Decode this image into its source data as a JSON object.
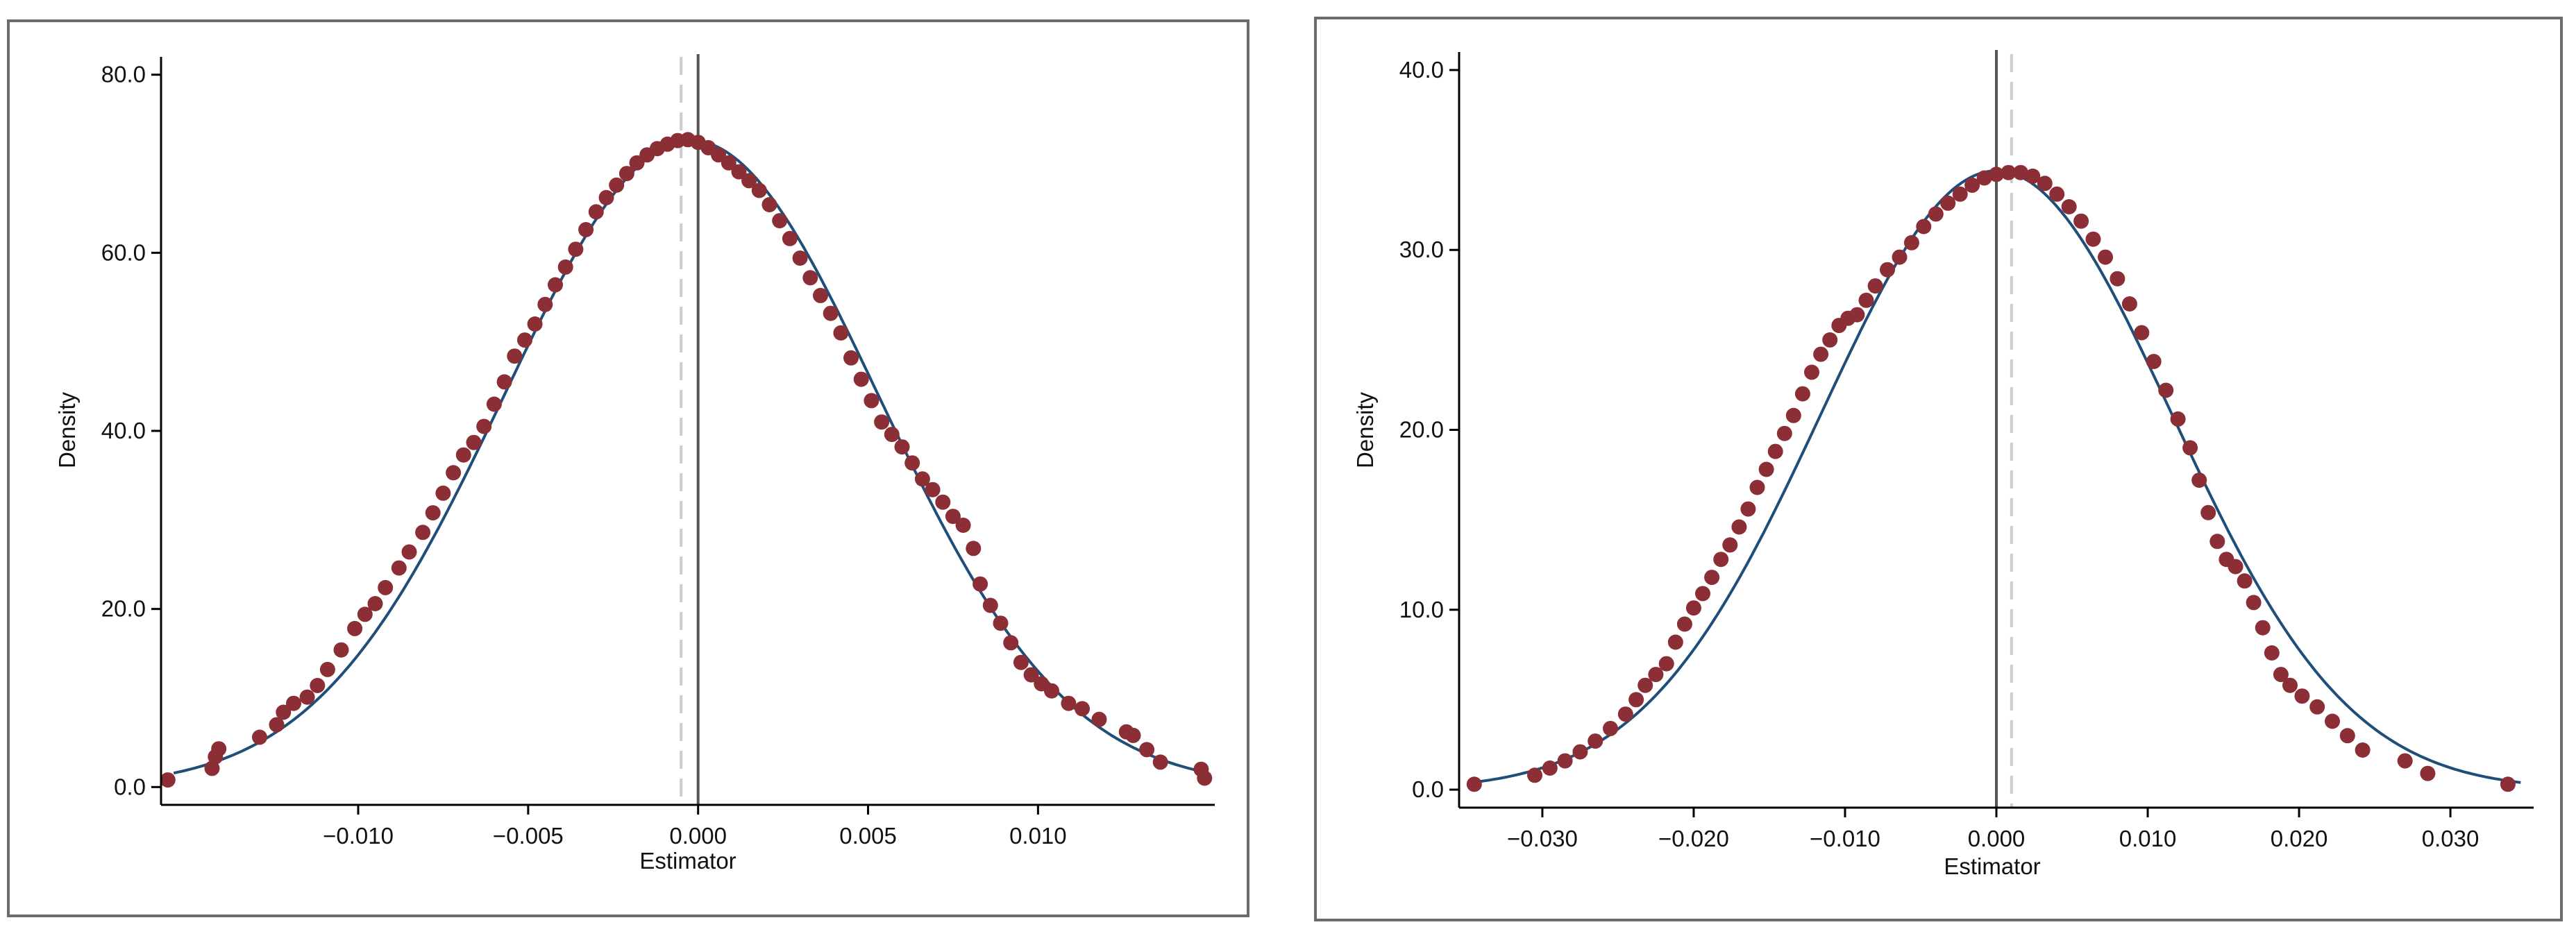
{
  "colors": {
    "frame": "#6b6b6b",
    "axis": "#000000",
    "marker": "#8b2e35",
    "curve": "#1e4e79",
    "solid_ref_line": "#555555",
    "dashed_ref_line": "#cccccc"
  },
  "chart_data": [
    {
      "type": "scatter",
      "title": "",
      "xlabel": "Estimator",
      "ylabel": "Density",
      "xlim": [
        -0.0158,
        0.0152
      ],
      "ylim": [
        -2.0,
        82.0
      ],
      "xticks": [
        -0.01,
        -0.005,
        0.0,
        0.005,
        0.01
      ],
      "xtick_labels": [
        "−0.010",
        "−0.005",
        "0.000",
        "0.005",
        "0.010"
      ],
      "yticks": [
        0,
        20,
        40,
        60,
        80
      ],
      "ytick_labels": [
        "0.0",
        "20.0",
        "40.0",
        "60.0",
        "80.0"
      ],
      "grid": false,
      "legend": "none",
      "ref_line_solid_x": 0.0,
      "ref_line_dashed_x": -0.0005,
      "normal_curve": {
        "mean": -0.0002,
        "sd": 0.0055,
        "peak": 72.6
      },
      "points": [
        [
          -0.0156,
          0.8
        ],
        [
          -0.0143,
          2.1
        ],
        [
          -0.0142,
          3.4
        ],
        [
          -0.0141,
          4.3
        ],
        [
          -0.0129,
          5.6
        ],
        [
          -0.0124,
          7.0
        ],
        [
          -0.0122,
          8.4
        ],
        [
          -0.0119,
          9.4
        ],
        [
          -0.0115,
          10.1
        ],
        [
          -0.0112,
          11.4
        ],
        [
          -0.0109,
          13.2
        ],
        [
          -0.0105,
          15.4
        ],
        [
          -0.0101,
          17.8
        ],
        [
          -0.0098,
          19.4
        ],
        [
          -0.0095,
          20.6
        ],
        [
          -0.0092,
          22.4
        ],
        [
          -0.0088,
          24.6
        ],
        [
          -0.0085,
          26.4
        ],
        [
          -0.0081,
          28.6
        ],
        [
          -0.0078,
          30.8
        ],
        [
          -0.0075,
          33.0
        ],
        [
          -0.0072,
          35.3
        ],
        [
          -0.0069,
          37.3
        ],
        [
          -0.0066,
          38.7
        ],
        [
          -0.0063,
          40.5
        ],
        [
          -0.006,
          43.0
        ],
        [
          -0.0057,
          45.5
        ],
        [
          -0.0054,
          48.4
        ],
        [
          -0.0051,
          50.2
        ],
        [
          -0.0048,
          52.0
        ],
        [
          -0.0045,
          54.2
        ],
        [
          -0.0042,
          56.4
        ],
        [
          -0.0039,
          58.4
        ],
        [
          -0.0036,
          60.4
        ],
        [
          -0.0033,
          62.6
        ],
        [
          -0.003,
          64.6
        ],
        [
          -0.0027,
          66.2
        ],
        [
          -0.0024,
          67.6
        ],
        [
          -0.0021,
          68.9
        ],
        [
          -0.0018,
          70.1
        ],
        [
          -0.0015,
          71.0
        ],
        [
          -0.0012,
          71.7
        ],
        [
          -0.0009,
          72.2
        ],
        [
          -0.0006,
          72.6
        ],
        [
          -0.0003,
          72.7
        ],
        [
          0.0,
          72.4
        ],
        [
          0.0003,
          71.8
        ],
        [
          0.0006,
          71.0
        ],
        [
          0.0009,
          70.1
        ],
        [
          0.0012,
          69.1
        ],
        [
          0.0015,
          68.1
        ],
        [
          0.0018,
          67.0
        ],
        [
          0.0021,
          65.4
        ],
        [
          0.0024,
          63.6
        ],
        [
          0.0027,
          61.6
        ],
        [
          0.003,
          59.4
        ],
        [
          0.0033,
          57.2
        ],
        [
          0.0036,
          55.2
        ],
        [
          0.0039,
          53.2
        ],
        [
          0.0042,
          51.0
        ],
        [
          0.0045,
          48.2
        ],
        [
          0.0048,
          45.8
        ],
        [
          0.0051,
          43.4
        ],
        [
          0.0054,
          41.0
        ],
        [
          0.0057,
          39.6
        ],
        [
          0.006,
          38.2
        ],
        [
          0.0063,
          36.4
        ],
        [
          0.0066,
          34.6
        ],
        [
          0.0069,
          33.4
        ],
        [
          0.0072,
          32.0
        ],
        [
          0.0075,
          30.4
        ],
        [
          0.0078,
          29.4
        ],
        [
          0.0081,
          26.8
        ],
        [
          0.0083,
          22.8
        ],
        [
          0.0086,
          20.4
        ],
        [
          0.0089,
          18.4
        ],
        [
          0.0092,
          16.2
        ],
        [
          0.0095,
          14.0
        ],
        [
          0.0098,
          12.6
        ],
        [
          0.0101,
          11.6
        ],
        [
          0.0104,
          10.8
        ],
        [
          0.0109,
          9.4
        ],
        [
          0.0113,
          8.8
        ],
        [
          0.0118,
          7.6
        ],
        [
          0.0126,
          6.2
        ],
        [
          0.0128,
          5.8
        ],
        [
          0.0132,
          4.2
        ],
        [
          0.0136,
          2.8
        ],
        [
          0.0148,
          2.0
        ],
        [
          0.0149,
          1.0
        ]
      ]
    },
    {
      "type": "scatter",
      "title": "",
      "xlabel": "Estimator",
      "ylabel": "Density",
      "xlim": [
        -0.0355,
        0.0355
      ],
      "ylim": [
        -1.0,
        41.0
      ],
      "xticks": [
        -0.03,
        -0.02,
        -0.01,
        0.0,
        0.01,
        0.02,
        0.03
      ],
      "xtick_labels": [
        "−0.030",
        "−0.020",
        "−0.010",
        "0.000",
        "0.010",
        "0.020",
        "0.030"
      ],
      "yticks": [
        0,
        10,
        20,
        30,
        40
      ],
      "ytick_labels": [
        "0.0",
        "10.0",
        "20.0",
        "30.0",
        "40.0"
      ],
      "grid": false,
      "legend": "none",
      "ref_line_solid_x": 0.0,
      "ref_line_dashed_x": 0.001,
      "normal_curve": {
        "mean": 0.0,
        "sd": 0.0116,
        "peak": 34.4
      },
      "points": [
        [
          -0.0345,
          0.3
        ],
        [
          -0.0305,
          0.8
        ],
        [
          -0.0295,
          1.2
        ],
        [
          -0.0285,
          1.6
        ],
        [
          -0.0275,
          2.1
        ],
        [
          -0.0265,
          2.7
        ],
        [
          -0.0255,
          3.4
        ],
        [
          -0.0245,
          4.2
        ],
        [
          -0.0238,
          5.0
        ],
        [
          -0.0232,
          5.8
        ],
        [
          -0.0225,
          6.4
        ],
        [
          -0.0218,
          7.0
        ],
        [
          -0.0212,
          8.2
        ],
        [
          -0.0206,
          9.2
        ],
        [
          -0.02,
          10.1
        ],
        [
          -0.0194,
          10.9
        ],
        [
          -0.0188,
          11.8
        ],
        [
          -0.0182,
          12.8
        ],
        [
          -0.0176,
          13.6
        ],
        [
          -0.017,
          14.6
        ],
        [
          -0.0164,
          15.6
        ],
        [
          -0.0158,
          16.8
        ],
        [
          -0.0152,
          17.8
        ],
        [
          -0.0146,
          18.8
        ],
        [
          -0.014,
          19.8
        ],
        [
          -0.0134,
          20.8
        ],
        [
          -0.0128,
          22.0
        ],
        [
          -0.0122,
          23.2
        ],
        [
          -0.0116,
          24.2
        ],
        [
          -0.011,
          25.0
        ],
        [
          -0.0104,
          25.8
        ],
        [
          -0.0098,
          26.2
        ],
        [
          -0.0092,
          26.4
        ],
        [
          -0.0086,
          27.2
        ],
        [
          -0.008,
          28.0
        ],
        [
          -0.0072,
          28.9
        ],
        [
          -0.0064,
          29.6
        ],
        [
          -0.0056,
          30.4
        ],
        [
          -0.0048,
          31.3
        ],
        [
          -0.004,
          32.0
        ],
        [
          -0.0032,
          32.6
        ],
        [
          -0.0024,
          33.1
        ],
        [
          -0.0016,
          33.6
        ],
        [
          -0.0008,
          34.0
        ],
        [
          0.0,
          34.2
        ],
        [
          0.0008,
          34.3
        ],
        [
          0.0016,
          34.3
        ],
        [
          0.0024,
          34.1
        ],
        [
          0.0032,
          33.7
        ],
        [
          0.004,
          33.1
        ],
        [
          0.0048,
          32.4
        ],
        [
          0.0056,
          31.6
        ],
        [
          0.0064,
          30.6
        ],
        [
          0.0072,
          29.6
        ],
        [
          0.008,
          28.4
        ],
        [
          0.0088,
          27.0
        ],
        [
          0.0096,
          25.4
        ],
        [
          0.0104,
          23.8
        ],
        [
          0.0112,
          22.2
        ],
        [
          0.012,
          20.6
        ],
        [
          0.0128,
          19.0
        ],
        [
          0.0134,
          17.2
        ],
        [
          0.014,
          15.4
        ],
        [
          0.0146,
          13.8
        ],
        [
          0.0152,
          12.8
        ],
        [
          0.0158,
          12.4
        ],
        [
          0.0164,
          11.6
        ],
        [
          0.017,
          10.4
        ],
        [
          0.0176,
          9.0
        ],
        [
          0.0182,
          7.6
        ],
        [
          0.0188,
          6.4
        ],
        [
          0.0194,
          5.8
        ],
        [
          0.0202,
          5.2
        ],
        [
          0.0212,
          4.6
        ],
        [
          0.0222,
          3.8
        ],
        [
          0.0232,
          3.0
        ],
        [
          0.0242,
          2.2
        ],
        [
          0.027,
          1.6
        ],
        [
          0.0285,
          0.9
        ],
        [
          0.0338,
          0.3
        ]
      ]
    }
  ]
}
